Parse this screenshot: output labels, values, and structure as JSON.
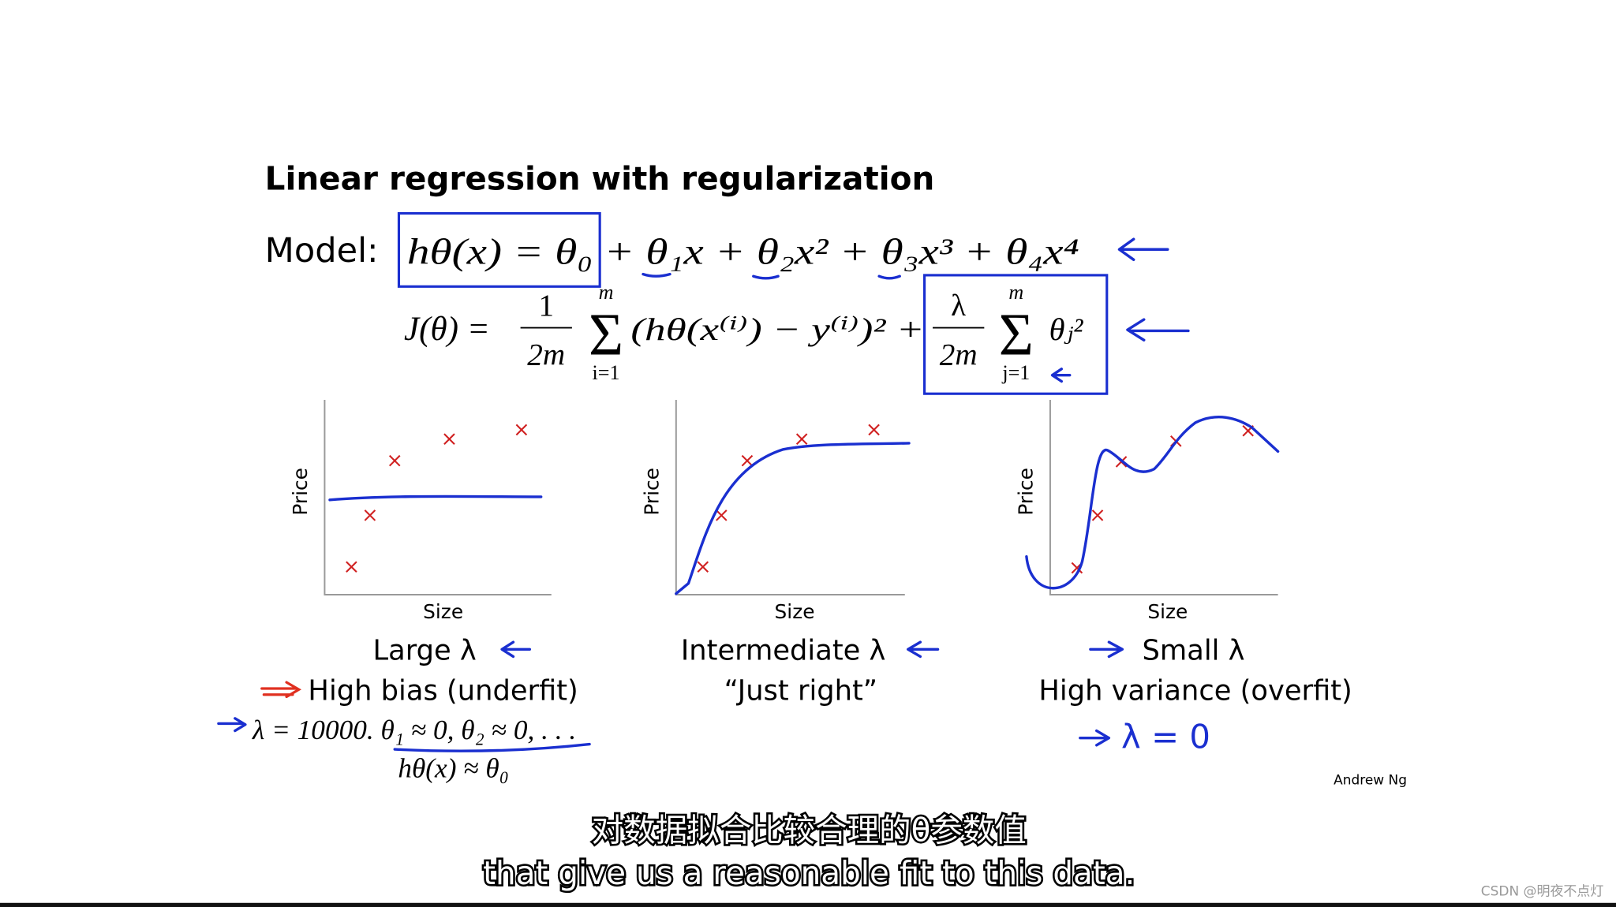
{
  "title": "Linear regression with regularization",
  "model_label": "Model:",
  "hypothesis": "hθ(x) = θ₀ + θ₁x + θ₂x² + θ₃x³ + θ₄x⁴",
  "cost": {
    "lhs": "J(θ) =",
    "frac1_num": "1",
    "frac1_den": "2m",
    "sum1_top": "m",
    "sum1_sym": "Σ",
    "sum1_bottom": "i=1",
    "term": "(hθ(x⁽ⁱ⁾) − y⁽ⁱ⁾)² +",
    "frac2_num": "λ",
    "frac2_den": "2m",
    "sum2_top": "m",
    "sum2_sym": "Σ",
    "sum2_bottom": "j=1",
    "term2": "θⱼ²"
  },
  "panels": [
    {
      "y_label": "Price",
      "x_label": "Size",
      "caption": "Large λ",
      "subcaption": "High bias (underfit)"
    },
    {
      "y_label": "Price",
      "x_label": "Size",
      "caption": "Intermediate λ",
      "subcaption": "“Just right”"
    },
    {
      "y_label": "Price",
      "x_label": "Size",
      "caption": "Small λ",
      "subcaption": "High variance (overfit)"
    }
  ],
  "notes": {
    "lambda_example": "λ = 10000. θ₁ ≈ 0, θ₂ ≈ 0, . . .",
    "hypothesis_approx": "hθ(x) ≈ θ₀",
    "lambda_zero": "λ = 0"
  },
  "author": "Andrew Ng",
  "subtitles": [
    "对数据拟合比较合理的θ参数值",
    "that give us a reasonable fit to this data."
  ],
  "watermark": "CSDN @明夜不点灯"
}
